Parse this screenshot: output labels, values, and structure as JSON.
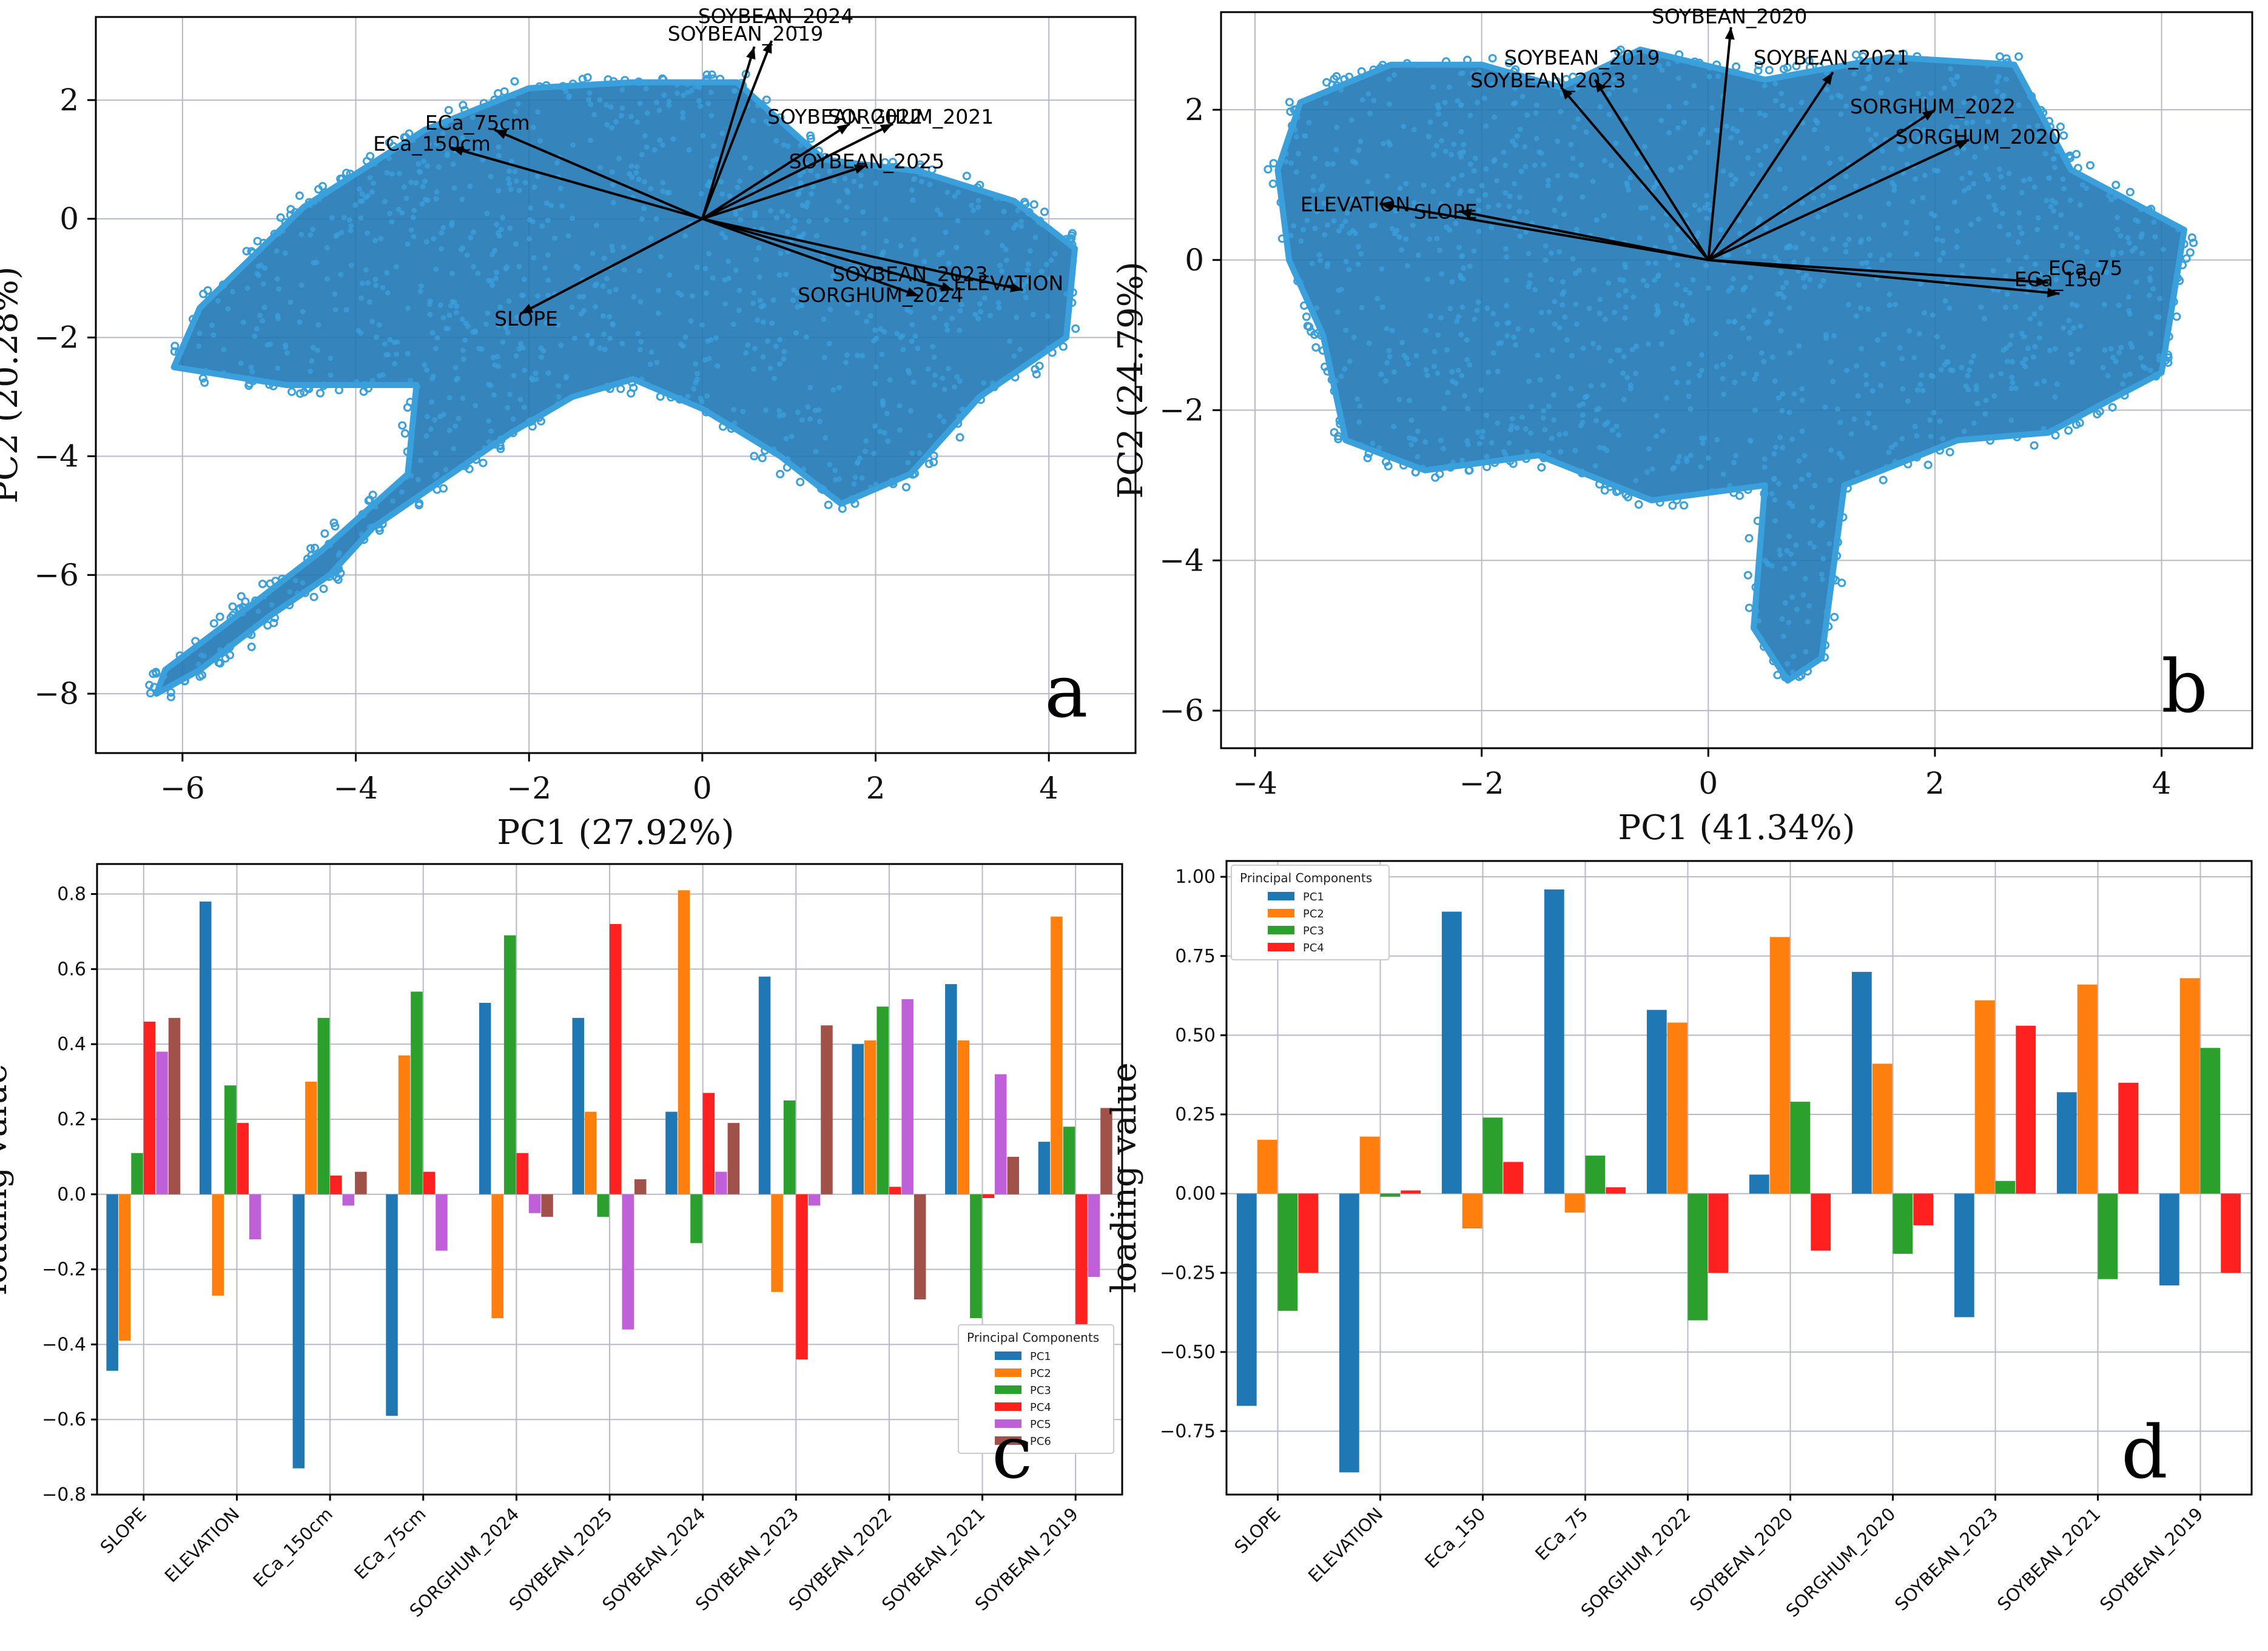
{
  "colors": {
    "scatter": "#1f77b4",
    "scatter_light": "#3aa0dc",
    "PC1": "#1f77b4",
    "PC2": "#ff7f0e",
    "PC3": "#2ca02c",
    "PC4": "#ff2020",
    "PC5": "#c060d8",
    "PC6": "#a0524a"
  },
  "chart_data": [
    {
      "panel": "a",
      "type": "scatter",
      "title": "",
      "xlabel": "PC1 (27.92%)",
      "ylabel": "PC2 (20.28%)",
      "xlim": [
        -7,
        5
      ],
      "ylim": [
        -9,
        3.4
      ],
      "xticks": [
        -6,
        -4,
        -2,
        0,
        2,
        4
      ],
      "yticks": [
        -8,
        -6,
        -4,
        -2,
        0,
        2
      ],
      "grid": true,
      "cloud": [
        [
          -6.3,
          -8.0
        ],
        [
          -5.8,
          -7.6
        ],
        [
          -5.0,
          -6.7
        ],
        [
          -4.3,
          -6.0
        ],
        [
          -3.8,
          -5.2
        ],
        [
          -3.0,
          -4.4
        ],
        [
          -2.2,
          -3.6
        ],
        [
          -1.5,
          -3.0
        ],
        [
          -0.8,
          -2.7
        ],
        [
          0.0,
          -3.2
        ],
        [
          0.9,
          -4.0
        ],
        [
          1.6,
          -4.8
        ],
        [
          2.4,
          -4.3
        ],
        [
          3.2,
          -3.0
        ],
        [
          4.2,
          -2.0
        ],
        [
          4.3,
          -0.5
        ],
        [
          3.6,
          0.3
        ],
        [
          2.5,
          0.8
        ],
        [
          1.4,
          1.0
        ],
        [
          0.4,
          2.3
        ],
        [
          -0.8,
          2.3
        ],
        [
          -2.0,
          2.2
        ],
        [
          -3.2,
          1.5
        ],
        [
          -4.6,
          0.2
        ],
        [
          -5.8,
          -1.5
        ],
        [
          -6.1,
          -2.5
        ],
        [
          -4.8,
          -2.8
        ],
        [
          -3.3,
          -2.8
        ],
        [
          -3.4,
          -4.3
        ],
        [
          -4.4,
          -5.6
        ],
        [
          -5.2,
          -6.5
        ],
        [
          -6.2,
          -7.6
        ]
      ],
      "loadings": [
        {
          "label": "SOYBEAN_2024",
          "x": 0.6,
          "y": 2.9
        },
        {
          "label": "SOYBEAN_2019",
          "x": 0.8,
          "y": 3.0
        },
        {
          "label": "SOYBEAN_2022",
          "x": 1.7,
          "y": 1.6
        },
        {
          "label": "SORGHUM_2021",
          "x": 2.2,
          "y": 1.6
        },
        {
          "label": "SOYBEAN_2025",
          "x": 1.9,
          "y": 0.9
        },
        {
          "label": "ECa_75cm",
          "x": -2.4,
          "y": 1.5
        },
        {
          "label": "ECa_150cm",
          "x": -2.9,
          "y": 1.2
        },
        {
          "label": "SOYBEAN_2023",
          "x": 2.9,
          "y": -1.2
        },
        {
          "label": "ELEVATION",
          "x": 3.7,
          "y": -1.2
        },
        {
          "label": "SORGHUM_2024",
          "x": 2.5,
          "y": -1.3
        },
        {
          "label": "SLOPE",
          "x": -2.1,
          "y": -1.6
        }
      ],
      "label_positions": [
        {
          "label": "SOYBEAN_2024",
          "x": -0.05,
          "y": 3.3
        },
        {
          "label": "SOYBEAN_2019",
          "x": -0.4,
          "y": 3.0
        },
        {
          "label": "SOYBEAN_2022",
          "x": 0.75,
          "y": 1.6
        },
        {
          "label": "SORGHUM_2021",
          "x": 1.45,
          "y": 1.6
        },
        {
          "label": "SOYBEAN_2025",
          "x": 1.0,
          "y": 0.85
        },
        {
          "label": "ECa_75cm",
          "x": -3.2,
          "y": 1.5
        },
        {
          "label": "ECa_150cm",
          "x": -3.8,
          "y": 1.15
        },
        {
          "label": "SOYBEAN_2023",
          "x": 1.5,
          "y": -1.05
        },
        {
          "label": "ELEVATION",
          "x": 2.9,
          "y": -1.2
        },
        {
          "label": "SORGHUM_2024",
          "x": 1.1,
          "y": -1.4
        },
        {
          "label": "SLOPE",
          "x": -2.4,
          "y": -1.8
        }
      ],
      "panel_letter": "a"
    },
    {
      "panel": "b",
      "type": "scatter",
      "title": "",
      "xlabel": "PC1 (41.34%)",
      "ylabel": "PC2 (24.79%)",
      "xlim": [
        -4.3,
        4.8
      ],
      "ylim": [
        -6.5,
        3.3
      ],
      "xticks": [
        -4,
        -2,
        0,
        2,
        4
      ],
      "yticks": [
        -6,
        -4,
        -2,
        0,
        2
      ],
      "grid": true,
      "cloud": [
        [
          -3.8,
          1.2
        ],
        [
          -3.6,
          2.1
        ],
        [
          -2.8,
          2.6
        ],
        [
          -2.0,
          2.6
        ],
        [
          -1.3,
          2.3
        ],
        [
          -0.6,
          2.8
        ],
        [
          0.5,
          2.4
        ],
        [
          1.6,
          2.7
        ],
        [
          2.7,
          2.6
        ],
        [
          3.2,
          1.2
        ],
        [
          4.2,
          0.4
        ],
        [
          4.0,
          -1.5
        ],
        [
          3.0,
          -2.3
        ],
        [
          2.2,
          -2.4
        ],
        [
          1.2,
          -3.0
        ],
        [
          1.0,
          -5.3
        ],
        [
          0.7,
          -5.6
        ],
        [
          0.4,
          -4.9
        ],
        [
          0.5,
          -3.0
        ],
        [
          -0.5,
          -3.2
        ],
        [
          -1.5,
          -2.6
        ],
        [
          -2.5,
          -2.8
        ],
        [
          -3.2,
          -2.4
        ],
        [
          -3.4,
          -1.0
        ],
        [
          -3.7,
          0.0
        ]
      ],
      "loadings": [
        {
          "label": "SOYBEAN_2020",
          "x": 0.2,
          "y": 3.1
        },
        {
          "label": "SOYBEAN_2021",
          "x": 1.1,
          "y": 2.5
        },
        {
          "label": "SOYBEAN_2019",
          "x": -1.0,
          "y": 2.4
        },
        {
          "label": "SOYBEAN_2023",
          "x": -1.3,
          "y": 2.3
        },
        {
          "label": "SORGHUM_2022",
          "x": 2.0,
          "y": 2.0
        },
        {
          "label": "SORGHUM_2020",
          "x": 2.3,
          "y": 1.6
        },
        {
          "label": "ELEVATION",
          "x": -2.9,
          "y": 0.75
        },
        {
          "label": "SLOPE",
          "x": -2.2,
          "y": 0.65
        },
        {
          "label": "ECa_75",
          "x": 3.0,
          "y": -0.3
        },
        {
          "label": "ECa_150",
          "x": 3.1,
          "y": -0.45
        }
      ],
      "label_positions": [
        {
          "label": "SOYBEAN_2020",
          "x": -0.5,
          "y": 3.15
        },
        {
          "label": "SOYBEAN_2021",
          "x": 0.4,
          "y": 2.6
        },
        {
          "label": "SOYBEAN_2019",
          "x": -1.8,
          "y": 2.6
        },
        {
          "label": "SOYBEAN_2023",
          "x": -2.1,
          "y": 2.3
        },
        {
          "label": "SORGHUM_2022",
          "x": 1.25,
          "y": 1.95
        },
        {
          "label": "SORGHUM_2020",
          "x": 1.65,
          "y": 1.55
        },
        {
          "label": "ELEVATION",
          "x": -3.6,
          "y": 0.65
        },
        {
          "label": "SLOPE",
          "x": -2.6,
          "y": 0.55
        },
        {
          "label": "ECa_75",
          "x": 3.0,
          "y": -0.2
        },
        {
          "label": "ECa_150",
          "x": 2.7,
          "y": -0.35
        }
      ],
      "panel_letter": "b"
    },
    {
      "panel": "c",
      "type": "bar",
      "title": "",
      "xlabel": "",
      "ylabel": "loading value",
      "ylim": [
        -0.8,
        0.88
      ],
      "yticks": [
        -0.8,
        -0.6,
        -0.4,
        -0.2,
        0.0,
        0.2,
        0.4,
        0.6,
        0.8
      ],
      "ytick_labels": [
        "−0.8",
        "−0.6",
        "−0.4",
        "−0.2",
        "0.0",
        "0.2",
        "0.4",
        "0.6",
        "0.8"
      ],
      "categories": [
        "SLOPE",
        "ELEVATION",
        "ECa_150cm",
        "ECa_75cm",
        "SORGHUM_2024",
        "SOYBEAN_2025",
        "SOYBEAN_2024",
        "SOYBEAN_2023",
        "SOYBEAN_2022",
        "SOYBEAN_2021",
        "SOYBEAN_2019"
      ],
      "series": [
        {
          "name": "PC1",
          "values": [
            -0.47,
            0.78,
            -0.73,
            -0.59,
            0.51,
            0.47,
            0.22,
            0.58,
            0.4,
            0.56,
            0.14
          ]
        },
        {
          "name": "PC2",
          "values": [
            -0.39,
            -0.27,
            0.3,
            0.37,
            -0.33,
            0.22,
            0.81,
            -0.26,
            0.41,
            0.41,
            0.74
          ]
        },
        {
          "name": "PC3",
          "values": [
            0.11,
            0.29,
            0.47,
            0.54,
            0.69,
            -0.06,
            -0.13,
            0.25,
            0.5,
            -0.33,
            0.18
          ]
        },
        {
          "name": "PC4",
          "values": [
            0.46,
            0.19,
            0.05,
            0.06,
            0.11,
            0.72,
            0.27,
            -0.44,
            0.02,
            -0.01,
            -0.36
          ]
        },
        {
          "name": "PC5",
          "values": [
            0.38,
            -0.12,
            -0.03,
            -0.15,
            -0.05,
            -0.36,
            0.06,
            -0.03,
            0.52,
            0.32,
            -0.22
          ]
        },
        {
          "name": "PC6",
          "values": [
            0.47,
            null,
            0.06,
            null,
            -0.06,
            0.04,
            0.19,
            0.45,
            -0.28,
            0.1,
            0.23
          ]
        }
      ],
      "legend": {
        "title": "Principal Components",
        "location": "lower-right"
      },
      "panel_letter": "c"
    },
    {
      "panel": "d",
      "type": "bar",
      "title": "",
      "xlabel": "",
      "ylabel": "loading value",
      "ylim": [
        -0.95,
        1.05
      ],
      "yticks": [
        -0.75,
        -0.5,
        -0.25,
        0.0,
        0.25,
        0.5,
        0.75,
        1.0
      ],
      "ytick_labels": [
        "−0.75",
        "−0.50",
        "−0.25",
        "0.00",
        "0.25",
        "0.50",
        "0.75",
        "1.00"
      ],
      "categories": [
        "SLOPE",
        "ELEVATION",
        "ECa_150",
        "ECa_75",
        "SORGHUM_2022",
        "SOYBEAN_2020",
        "SORGHUM_2020",
        "SOYBEAN_2023",
        "SOYBEAN_2021",
        "SOYBEAN_2019"
      ],
      "series": [
        {
          "name": "PC1",
          "values": [
            -0.67,
            -0.88,
            0.89,
            0.96,
            0.58,
            0.06,
            0.7,
            -0.39,
            0.32,
            -0.29
          ]
        },
        {
          "name": "PC2",
          "values": [
            0.17,
            0.18,
            -0.11,
            -0.06,
            0.54,
            0.81,
            0.41,
            0.61,
            0.66,
            0.68
          ]
        },
        {
          "name": "PC3",
          "values": [
            -0.37,
            -0.01,
            0.24,
            0.12,
            -0.4,
            0.29,
            -0.19,
            0.04,
            -0.27,
            0.46
          ]
        },
        {
          "name": "PC4",
          "values": [
            -0.25,
            0.01,
            0.1,
            0.02,
            -0.25,
            -0.18,
            -0.1,
            0.53,
            0.35,
            -0.25
          ]
        }
      ],
      "legend": {
        "title": "Principal Components",
        "location": "upper-left"
      },
      "panel_letter": "d"
    }
  ]
}
